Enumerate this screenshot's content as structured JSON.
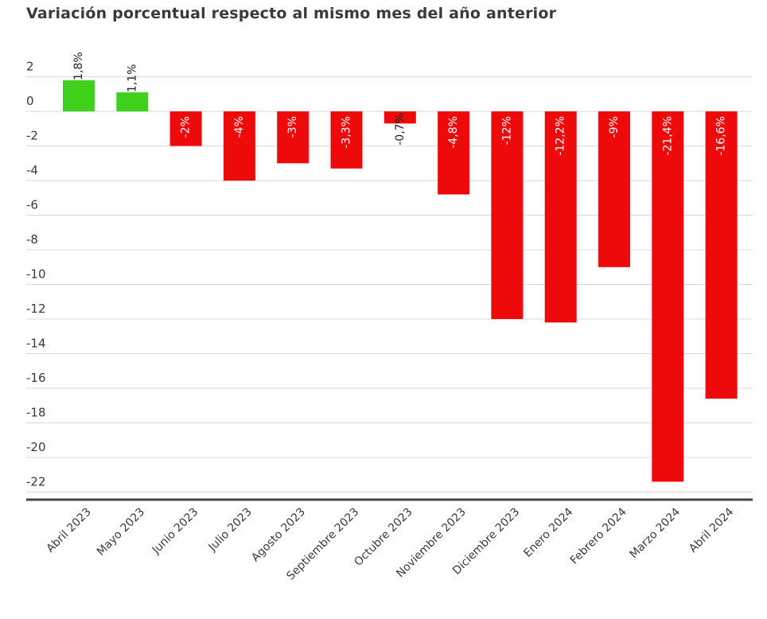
{
  "chart_data": {
    "type": "bar",
    "title": "Variación porcentual respecto al mismo mes  del año anterior",
    "xlabel": "",
    "ylabel": "",
    "categories": [
      "Abril 2023",
      "Mayo 2023",
      "Junio 2023",
      "Julio 2023",
      "Agosto 2023",
      "Septiembre 2023",
      "Octubre 2023",
      "Noviembre 2023",
      "Diciembre 2023",
      "Enero 2024",
      "Febrero 2024",
      "Marzo 2024",
      "Abril 2024"
    ],
    "values": [
      1.8,
      1.1,
      -2,
      -4,
      -3,
      -3.3,
      -0.7,
      -4.8,
      -12,
      -12.2,
      -9,
      -21.4,
      -16.6
    ],
    "data_labels": [
      "1,8%",
      "1,1%",
      "-2%",
      "-4%",
      "-3%",
      "-3,3%",
      "-0,7%",
      "-4,8%",
      "-12%",
      "-12,2%",
      "-9%",
      "-21,4%",
      "-16,6%"
    ],
    "yticks": [
      2,
      0,
      -2,
      -4,
      -6,
      -8,
      -10,
      -12,
      -14,
      -16,
      -18,
      -20,
      -22
    ],
    "ylim": [
      -22,
      2
    ],
    "grid": true,
    "legend": "none",
    "colors": {
      "positive": "#3fd11b",
      "negative": "#ee0a0a",
      "grid": "#d9d9d9",
      "axis": "#444444"
    }
  }
}
